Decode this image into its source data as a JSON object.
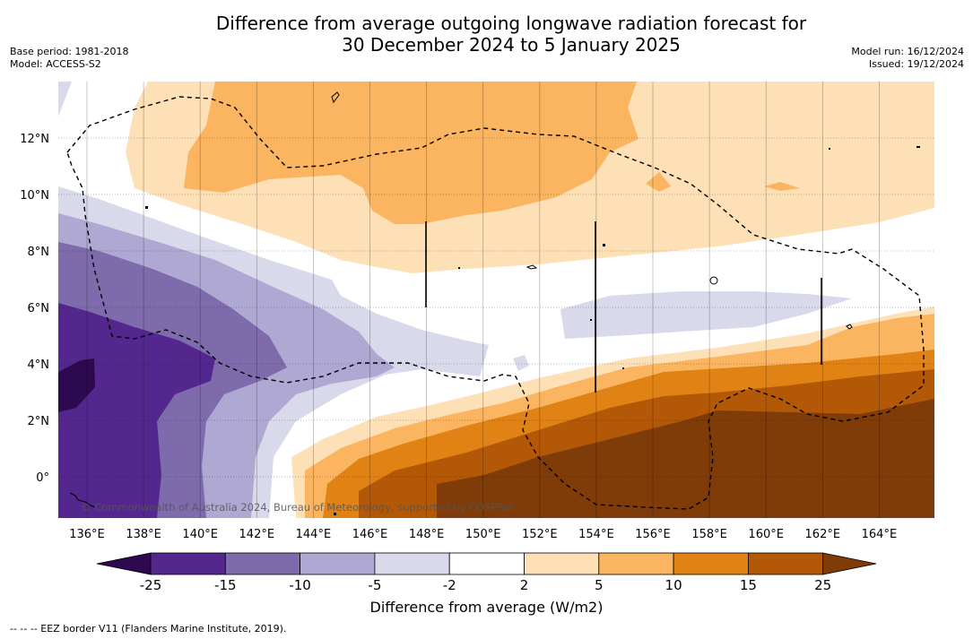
{
  "title_line1": "Difference from average outgoing longwave radiation forecast for",
  "title_line2": "30 December 2024 to 5 January 2025",
  "base_period": "Base period: 1981-2018",
  "model": "Model: ACCESS-S2",
  "model_run": "Model run: 16/12/2024",
  "issued": "Issued: 19/12/2024",
  "copyright": "© Commonwealth of Australia 2024, Bureau of Meteorology, supported by COSPPac",
  "colorbar_label": "Difference from average (W/m2)",
  "footnote": "--  --  -- EEZ border V11 (Flanders Marine Institute, 2019).",
  "lon_ticks": [
    "136°E",
    "138°E",
    "140°E",
    "142°E",
    "144°E",
    "146°E",
    "148°E",
    "150°E",
    "152°E",
    "154°E",
    "156°E",
    "158°E",
    "160°E",
    "162°E",
    "164°E"
  ],
  "lat_ticks": [
    "12°N",
    "10°N",
    "8°N",
    "6°N",
    "4°N",
    "2°N",
    "0°"
  ],
  "colorbar": {
    "ticks": [
      "-25",
      "-15",
      "-10",
      "-5",
      "-2",
      "2",
      "5",
      "10",
      "15",
      "25"
    ],
    "colors": [
      "#2d0a4f",
      "#54278f",
      "#7d6bab",
      "#aea8d3",
      "#d8d9ea",
      "#ffffff",
      "#fde0b6",
      "#fbb45f",
      "#e08214",
      "#b35806",
      "#7f3b08"
    ]
  },
  "colors": {
    "land": "#000000",
    "eez": "#000000"
  }
}
